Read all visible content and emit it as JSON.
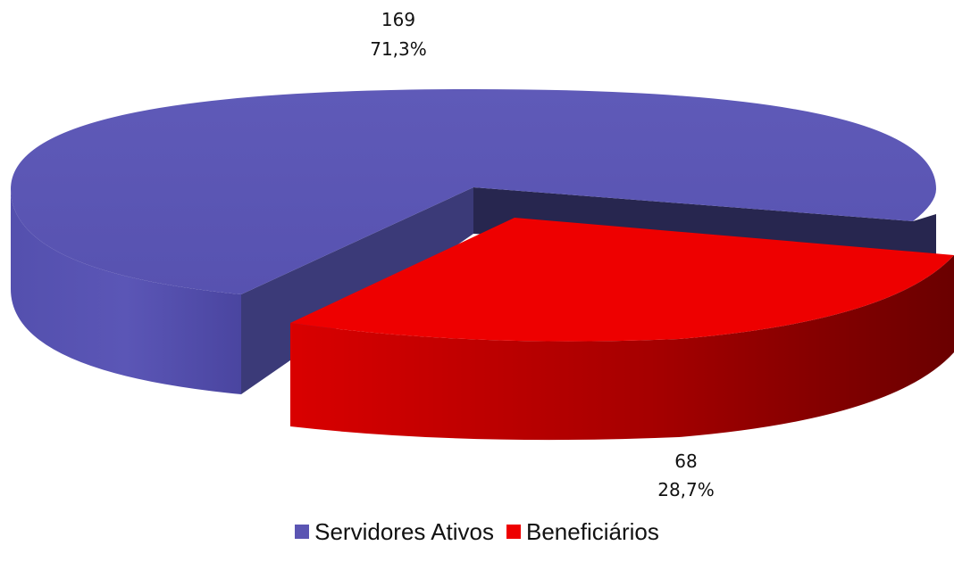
{
  "chart_data": {
    "type": "pie",
    "title": "",
    "style": "3d-exploded",
    "legend_position": "bottom",
    "slices": [
      {
        "name": "Servidores Ativos",
        "value": 169,
        "percent_label": "71,3%",
        "color": "#5b55b3"
      },
      {
        "name": "Beneficiários",
        "value": 68,
        "percent_label": "28,7%",
        "color": "#ee0000"
      }
    ]
  },
  "labels": {
    "servidores_value": "169",
    "servidores_percent": "71,3%",
    "beneficiarios_value": "68",
    "beneficiarios_percent": "28,7%"
  },
  "legend": [
    {
      "label": "Servidores Ativos",
      "color": "#5b55b3"
    },
    {
      "label": "Beneficiários",
      "color": "#ee0000"
    }
  ]
}
